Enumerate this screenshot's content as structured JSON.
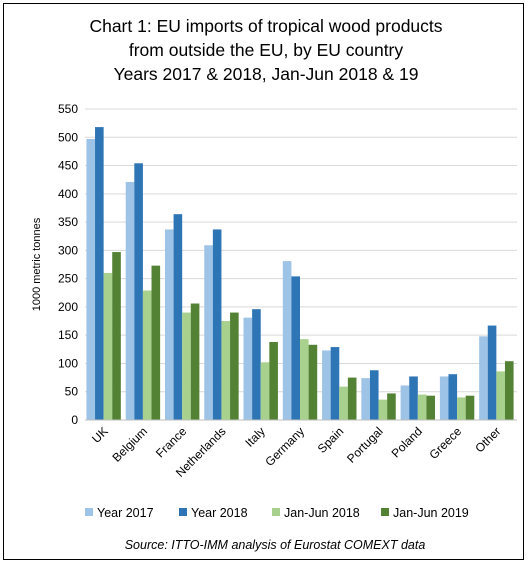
{
  "chart_data": {
    "type": "bar",
    "title": [
      "Chart 1: EU imports of tropical wood products",
      "from outside the EU, by EU country",
      "Years 2017 & 2018, Jan-Jun 2018 & 19"
    ],
    "ylabel": "1000 metric tonnes",
    "ylim": [
      0,
      550
    ],
    "yticks": [
      "0",
      "50",
      "100",
      "150",
      "200",
      "250",
      "300",
      "350",
      "400",
      "450",
      "500",
      "550"
    ],
    "categories": [
      "UK",
      "Belgium",
      "France",
      "Netherlands",
      "Italy",
      "Germany",
      "Spain",
      "Portugal",
      "Poland",
      "Greece",
      "Other"
    ],
    "series": [
      {
        "name": "Year 2017",
        "color": "#9dc3e6",
        "values": [
          497,
          421,
          337,
          309,
          181,
          281,
          123,
          74,
          61,
          77,
          148
        ]
      },
      {
        "name": "Year 2018",
        "color": "#2e75b6",
        "values": [
          518,
          454,
          364,
          337,
          196,
          254,
          129,
          88,
          77,
          81,
          167
        ]
      },
      {
        "name": "Jan-Jun 2018",
        "color": "#a9d18e",
        "values": [
          260,
          229,
          190,
          175,
          102,
          143,
          59,
          36,
          45,
          40,
          86
        ]
      },
      {
        "name": "Jan-Jun 2019",
        "color": "#548235",
        "values": [
          297,
          273,
          206,
          190,
          138,
          133,
          75,
          47,
          43,
          43,
          104
        ]
      }
    ],
    "grid": true,
    "legend_position": "bottom",
    "source": "Source: ITTO-IMM analysis of Eurostat COMEXT data"
  }
}
